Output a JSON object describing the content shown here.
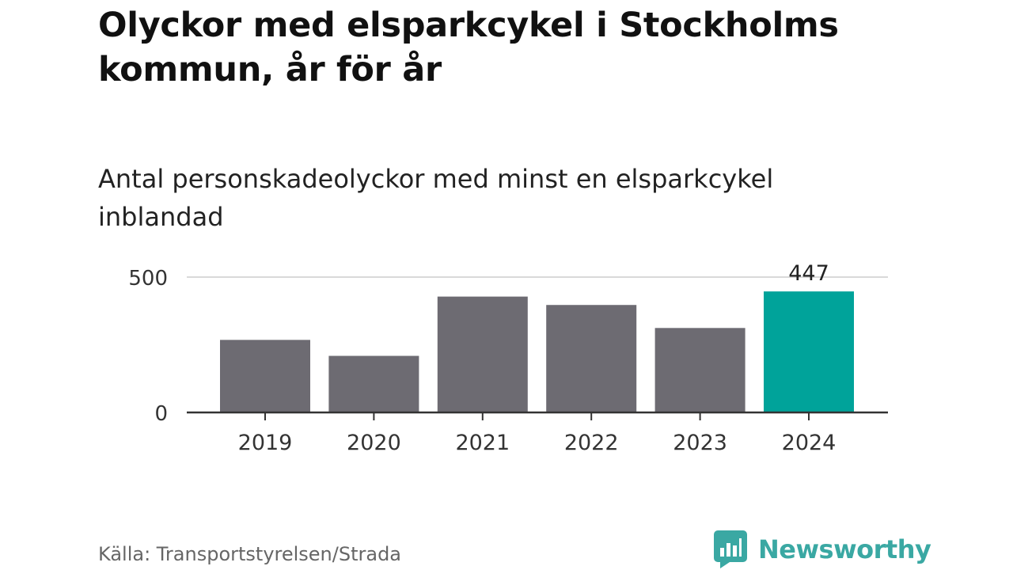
{
  "title": "Olyckor med elsparkcykel i Stockholms kommun, år för år",
  "subtitle": "Antal personskadeolyckor med minst en elsparkcykel inblandad",
  "source": "Källa: Transportstyrelsen/Strada",
  "brand": {
    "name": "Newsworthy",
    "icon": "newsworthy-logo-icon"
  },
  "colors": {
    "bar": "#6d6b72",
    "highlight": "#00a39a",
    "brand": "#3aa8a3"
  },
  "chart_data": {
    "type": "bar",
    "categories": [
      "2019",
      "2020",
      "2021",
      "2022",
      "2023",
      "2024"
    ],
    "values": [
      268,
      209,
      428,
      397,
      312,
      447
    ],
    "highlight_index": 5,
    "data_labels": [
      null,
      null,
      null,
      null,
      null,
      "447"
    ],
    "yticks": [
      0,
      500
    ],
    "ylim": [
      0,
      500
    ],
    "xlabel": "",
    "ylabel": "",
    "grid": true
  }
}
